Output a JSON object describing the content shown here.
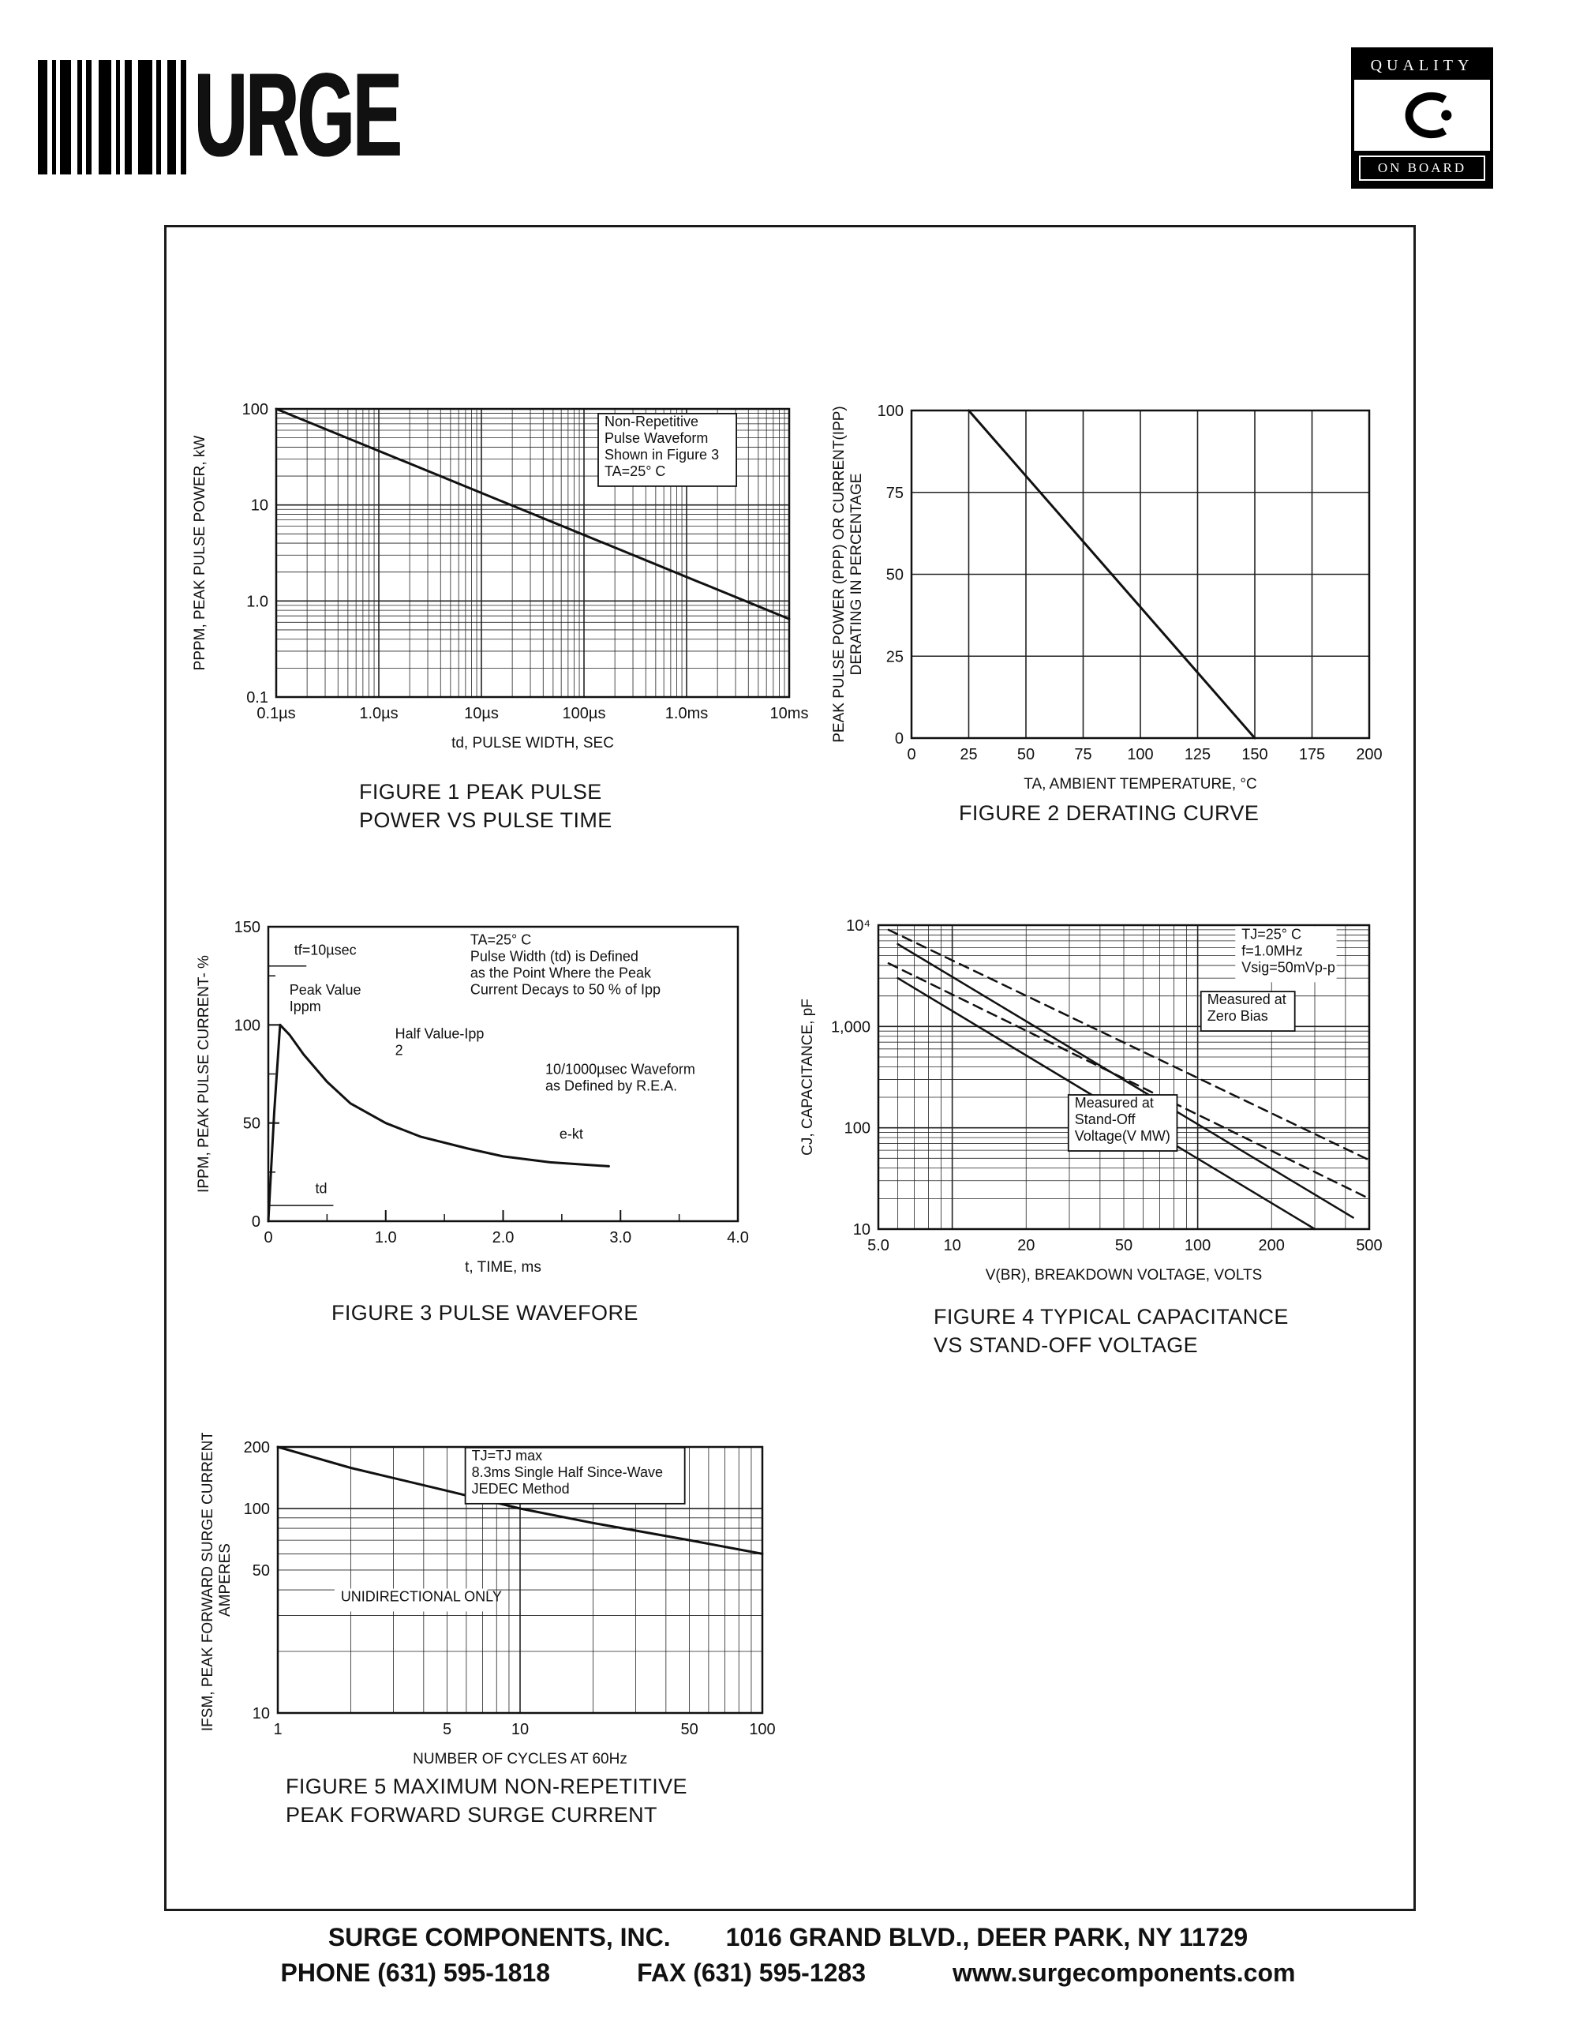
{
  "logo": {
    "text": "URGE"
  },
  "quality_badge": {
    "top": "QUALITY",
    "bottom": "ON BOARD"
  },
  "figures": [
    {
      "caption": "FIGURE 1 PEAK PULSE\nPOWER VS PULSE TIME"
    },
    {
      "caption": "FIGURE 2 DERATING CURVE"
    },
    {
      "caption": "FIGURE 3 PULSE WAVEFORE"
    },
    {
      "caption": "FIGURE 4 TYPICAL CAPACITANCE\nVS STAND-OFF VOLTAGE"
    },
    {
      "caption": "FIGURE 5 MAXIMUM NON-REPETITIVE\nPEAK FORWARD SURGE CURRENT"
    }
  ],
  "footer": {
    "company": "SURGE COMPONENTS, INC.",
    "address": "1016 GRAND BLVD., DEER PARK, NY  11729",
    "phone": "PHONE (631) 595-1818",
    "fax": "FAX  (631) 595-1283",
    "web": "www.surgecomponents.com"
  },
  "chart_data": [
    {
      "type": "line",
      "title": "FIGURE 1 PEAK PULSE POWER VS PULSE TIME",
      "x": {
        "scale": "log",
        "min": 1e-07,
        "max": 0.01,
        "label": "td, PULSE WIDTH, SEC",
        "ticks": [
          {
            "v": 1e-07,
            "t": "0.1µs"
          },
          {
            "v": 1e-06,
            "t": "1.0µs"
          },
          {
            "v": 1e-05,
            "t": "10µs"
          },
          {
            "v": 0.0001,
            "t": "100µs"
          },
          {
            "v": 0.001,
            "t": "1.0ms"
          },
          {
            "v": 0.01,
            "t": "10ms"
          }
        ]
      },
      "y": {
        "scale": "log",
        "min": 0.1,
        "max": 100,
        "label": "PPPM, PEAK PULSE POWER, kW",
        "ticks": [
          {
            "v": 0.1,
            "t": "0.1"
          },
          {
            "v": 1,
            "t": "1.0"
          },
          {
            "v": 10,
            "t": "10"
          },
          {
            "v": 100,
            "t": "100"
          }
        ]
      },
      "grid": "log",
      "series": [
        {
          "name": "peak-pulse-power",
          "dash": false,
          "width": 3,
          "points": [
            [
              1e-07,
              100
            ],
            [
              0.01,
              0.65
            ]
          ]
        }
      ],
      "annotations": [
        {
          "text": "Non-Repetitive\nPulse Waveform\nShown in Figure 3\nTA=25° C",
          "fx": 0.64,
          "fy": 0.06,
          "boxed": true
        }
      ]
    },
    {
      "type": "line",
      "title": "FIGURE 2 DERATING CURVE",
      "x": {
        "scale": "linear",
        "min": 0,
        "max": 200,
        "grid_step": 25,
        "label": "TA, AMBIENT  TEMPERATURE, °C",
        "ticks": [
          {
            "v": 0,
            "t": "0"
          },
          {
            "v": 25,
            "t": "25"
          },
          {
            "v": 50,
            "t": "50"
          },
          {
            "v": 75,
            "t": "75"
          },
          {
            "v": 100,
            "t": "100"
          },
          {
            "v": 125,
            "t": "125"
          },
          {
            "v": 150,
            "t": "150"
          },
          {
            "v": 175,
            "t": "175"
          },
          {
            "v": 200,
            "t": "200"
          }
        ]
      },
      "y": {
        "scale": "linear",
        "min": 0,
        "max": 100,
        "grid_step": 25,
        "label": "PEAK PULSE POWER (PPP) OR CURRENT(IPP)\nDERATING IN PERCENTAGE",
        "ticks": [
          {
            "v": 0,
            "t": "0"
          },
          {
            "v": 25,
            "t": "25"
          },
          {
            "v": 50,
            "t": "50"
          },
          {
            "v": 75,
            "t": "75"
          },
          {
            "v": 100,
            "t": "100"
          }
        ]
      },
      "grid": "linear",
      "series": [
        {
          "name": "derating-curve",
          "dash": false,
          "width": 3,
          "points": [
            [
              25,
              100
            ],
            [
              150,
              0
            ]
          ]
        }
      ],
      "annotations": []
    },
    {
      "type": "line",
      "title": "FIGURE 3 PULSE WAVEFORE",
      "x": {
        "scale": "linear",
        "min": 0,
        "max": 4,
        "minor_step": 0.5,
        "label": "t, TIME, ms",
        "ticks": [
          {
            "v": 0,
            "t": "0"
          },
          {
            "v": 1,
            "t": "1.0"
          },
          {
            "v": 2,
            "t": "2.0"
          },
          {
            "v": 3,
            "t": "3.0"
          },
          {
            "v": 4,
            "t": "4.0"
          }
        ]
      },
      "y": {
        "scale": "linear",
        "min": 0,
        "max": 150,
        "minor_step": 25,
        "label": "IPPM, PEAK PULSE CURRENT- %",
        "ticks": [
          {
            "v": 0,
            "t": "0"
          },
          {
            "v": 50,
            "t": "50"
          },
          {
            "v": 100,
            "t": "100"
          },
          {
            "v": 150,
            "t": "150"
          }
        ]
      },
      "grid": "none",
      "series": [
        {
          "name": "pulse-waveform",
          "dash": false,
          "width": 3,
          "points": [
            [
              0,
              0
            ],
            [
              0.05,
              55
            ],
            [
              0.1,
              100
            ],
            [
              0.18,
              95
            ],
            [
              0.3,
              85
            ],
            [
              0.5,
              71
            ],
            [
              0.7,
              60
            ],
            [
              1,
              50
            ],
            [
              1.3,
              43
            ],
            [
              1.7,
              37
            ],
            [
              2,
              33
            ],
            [
              2.4,
              30
            ],
            [
              2.9,
              28
            ]
          ]
        },
        {
          "name": "tf-marker",
          "dash": false,
          "width": 1.5,
          "points": [
            [
              0,
              130
            ],
            [
              0.32,
              130
            ]
          ]
        },
        {
          "name": "td-marker",
          "dash": false,
          "width": 1.5,
          "points": [
            [
              0,
              8
            ],
            [
              0.55,
              8
            ]
          ]
        }
      ],
      "annotations": [
        {
          "text": "tf=10µsec",
          "fx": 0.055,
          "fy": 0.095,
          "boxed": false
        },
        {
          "text": "Peak Value\nIppm",
          "fx": 0.045,
          "fy": 0.23,
          "boxed": false
        },
        {
          "text": "Half Value-Ipp\n2",
          "fx": 0.27,
          "fy": 0.38,
          "boxed": false
        },
        {
          "text": "TA=25° C\nPulse Width (td) is Defined\nas the Point Where the Peak\nCurrent Decays to 50 % of Ipp",
          "fx": 0.43,
          "fy": 0.06,
          "boxed": false
        },
        {
          "text": "10/1000µsec Waveform\nas Defined by R.E.A.",
          "fx": 0.59,
          "fy": 0.5,
          "boxed": false
        },
        {
          "text": "e-kt",
          "fx": 0.62,
          "fy": 0.72,
          "boxed": false
        },
        {
          "text": "td",
          "fx": 0.1,
          "fy": 0.905,
          "boxed": false
        }
      ]
    },
    {
      "type": "line",
      "title": "FIGURE 4 TYPICAL CAPACITANCE VS STAND-OFF VOLTAGE",
      "x": {
        "scale": "log",
        "min": 5,
        "max": 500,
        "label": "V(BR), BREAKDOWN VOLTAGE, VOLTS",
        "ticks": [
          {
            "v": 5,
            "t": "5.0"
          },
          {
            "v": 10,
            "t": "10"
          },
          {
            "v": 20,
            "t": "20"
          },
          {
            "v": 50,
            "t": "50"
          },
          {
            "v": 100,
            "t": "100"
          },
          {
            "v": 200,
            "t": "200"
          },
          {
            "v": 500,
            "t": "500"
          }
        ]
      },
      "y": {
        "scale": "log",
        "min": 10,
        "max": 10000,
        "label": "CJ, CAPACITANCE, pF",
        "ticks": [
          {
            "v": 10,
            "t": "10"
          },
          {
            "v": 100,
            "t": "100"
          },
          {
            "v": 1000,
            "t": "1,000"
          },
          {
            "v": 10000,
            "t": "10⁴"
          }
        ]
      },
      "grid": "log",
      "series": [
        {
          "name": "zero-bias-upper",
          "dash": true,
          "width": 2.5,
          "points": [
            [
              5.5,
              9000
            ],
            [
              500,
              48
            ]
          ]
        },
        {
          "name": "zero-bias-lower",
          "dash": true,
          "width": 2.5,
          "points": [
            [
              5.5,
              4200
            ],
            [
              500,
              20
            ]
          ]
        },
        {
          "name": "standoff-upper",
          "dash": false,
          "width": 2.5,
          "points": [
            [
              6,
              6500
            ],
            [
              430,
              13
            ]
          ]
        },
        {
          "name": "standoff-lower",
          "dash": false,
          "width": 2.5,
          "points": [
            [
              6,
              3000
            ],
            [
              300,
              10
            ]
          ]
        }
      ],
      "annotations": [
        {
          "text": "TJ=25° C\nf=1.0MHz\nVsig=50mVp-p",
          "fx": 0.74,
          "fy": 0.045,
          "boxed": false
        },
        {
          "text": "Measured at\nZero Bias",
          "fx": 0.67,
          "fy": 0.26,
          "boxed": true
        },
        {
          "text": "Measured at\nStand-Off\nVoltage(V MW)",
          "fx": 0.4,
          "fy": 0.6,
          "boxed": true
        }
      ]
    },
    {
      "type": "line",
      "title": "FIGURE 5 MAXIMUM NON-REPETITIVE PEAK FORWARD SURGE CURRENT",
      "x": {
        "scale": "log",
        "min": 1,
        "max": 100,
        "label": "NUMBER OF CYCLES AT 60Hz",
        "ticks": [
          {
            "v": 1,
            "t": "1"
          },
          {
            "v": 5,
            "t": "5"
          },
          {
            "v": 10,
            "t": "10"
          },
          {
            "v": 50,
            "t": "50"
          },
          {
            "v": 100,
            "t": "100"
          }
        ]
      },
      "y": {
        "scale": "log",
        "min": 10,
        "max": 200,
        "label": "IFSM, PEAK FORWARD SURGE CURRENT,\nAMPERES",
        "ticks": [
          {
            "v": 10,
            "t": "10"
          },
          {
            "v": 50,
            "t": "50"
          },
          {
            "v": 100,
            "t": "100"
          },
          {
            "v": 200,
            "t": "200"
          }
        ]
      },
      "grid": "log",
      "series": [
        {
          "name": "forward-surge-current",
          "dash": false,
          "width": 3,
          "points": [
            [
              1,
              200
            ],
            [
              2,
              158
            ],
            [
              5,
              122
            ],
            [
              10,
              100
            ],
            [
              20,
              85
            ],
            [
              50,
              70
            ],
            [
              100,
              60
            ]
          ]
        }
      ],
      "annotations": [
        {
          "text": "TJ=TJ max\n8.3ms Single Half Since-Wave\nJEDEC Method",
          "fx": 0.4,
          "fy": 0.05,
          "boxed": true
        },
        {
          "text": "UNIDIRECTIONAL ONLY",
          "fx": 0.13,
          "fy": 0.58,
          "boxed": false
        }
      ]
    }
  ]
}
